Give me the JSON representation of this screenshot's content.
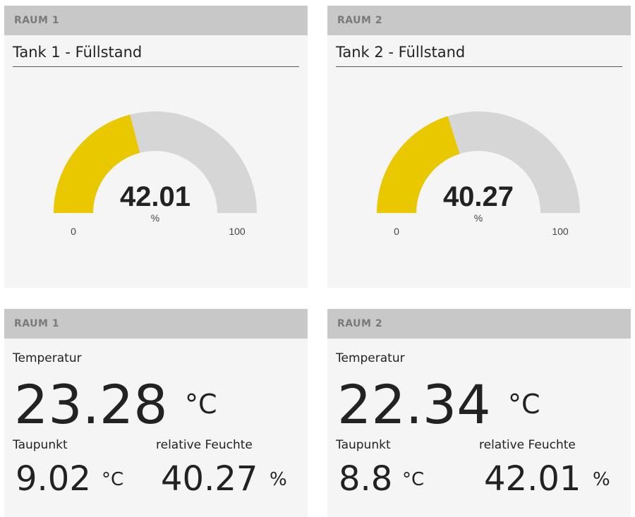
{
  "accent_color": "#e9c800",
  "track_color": "#d6d6d6",
  "gauges": [
    {
      "room": "RAUM 1",
      "title": "Tank 1 - Füllstand",
      "value": 42.01,
      "value_text": "42.01",
      "unit": "%",
      "min": 0,
      "max": 100,
      "min_label": "0",
      "max_label": "100"
    },
    {
      "room": "RAUM 2",
      "title": "Tank 2 - Füllstand",
      "value": 40.27,
      "value_text": "40.27",
      "unit": "%",
      "min": 0,
      "max": 100,
      "min_label": "0",
      "max_label": "100"
    }
  ],
  "climate": [
    {
      "room": "RAUM 1",
      "temp_label": "Temperatur",
      "temp_value": "23.28",
      "temp_unit": "°C",
      "dew_label": "Taupunkt",
      "dew_value": "9.02",
      "dew_unit": "°C",
      "hum_label": "relative Feuchte",
      "hum_value": "40.27",
      "hum_unit": "%"
    },
    {
      "room": "RAUM 2",
      "temp_label": "Temperatur",
      "temp_value": "22.34",
      "temp_unit": "°C",
      "dew_label": "Taupunkt",
      "dew_value": "8.8",
      "dew_unit": "°C",
      "hum_label": "relative Feuchte",
      "hum_value": "42.01",
      "hum_unit": "%"
    }
  ]
}
